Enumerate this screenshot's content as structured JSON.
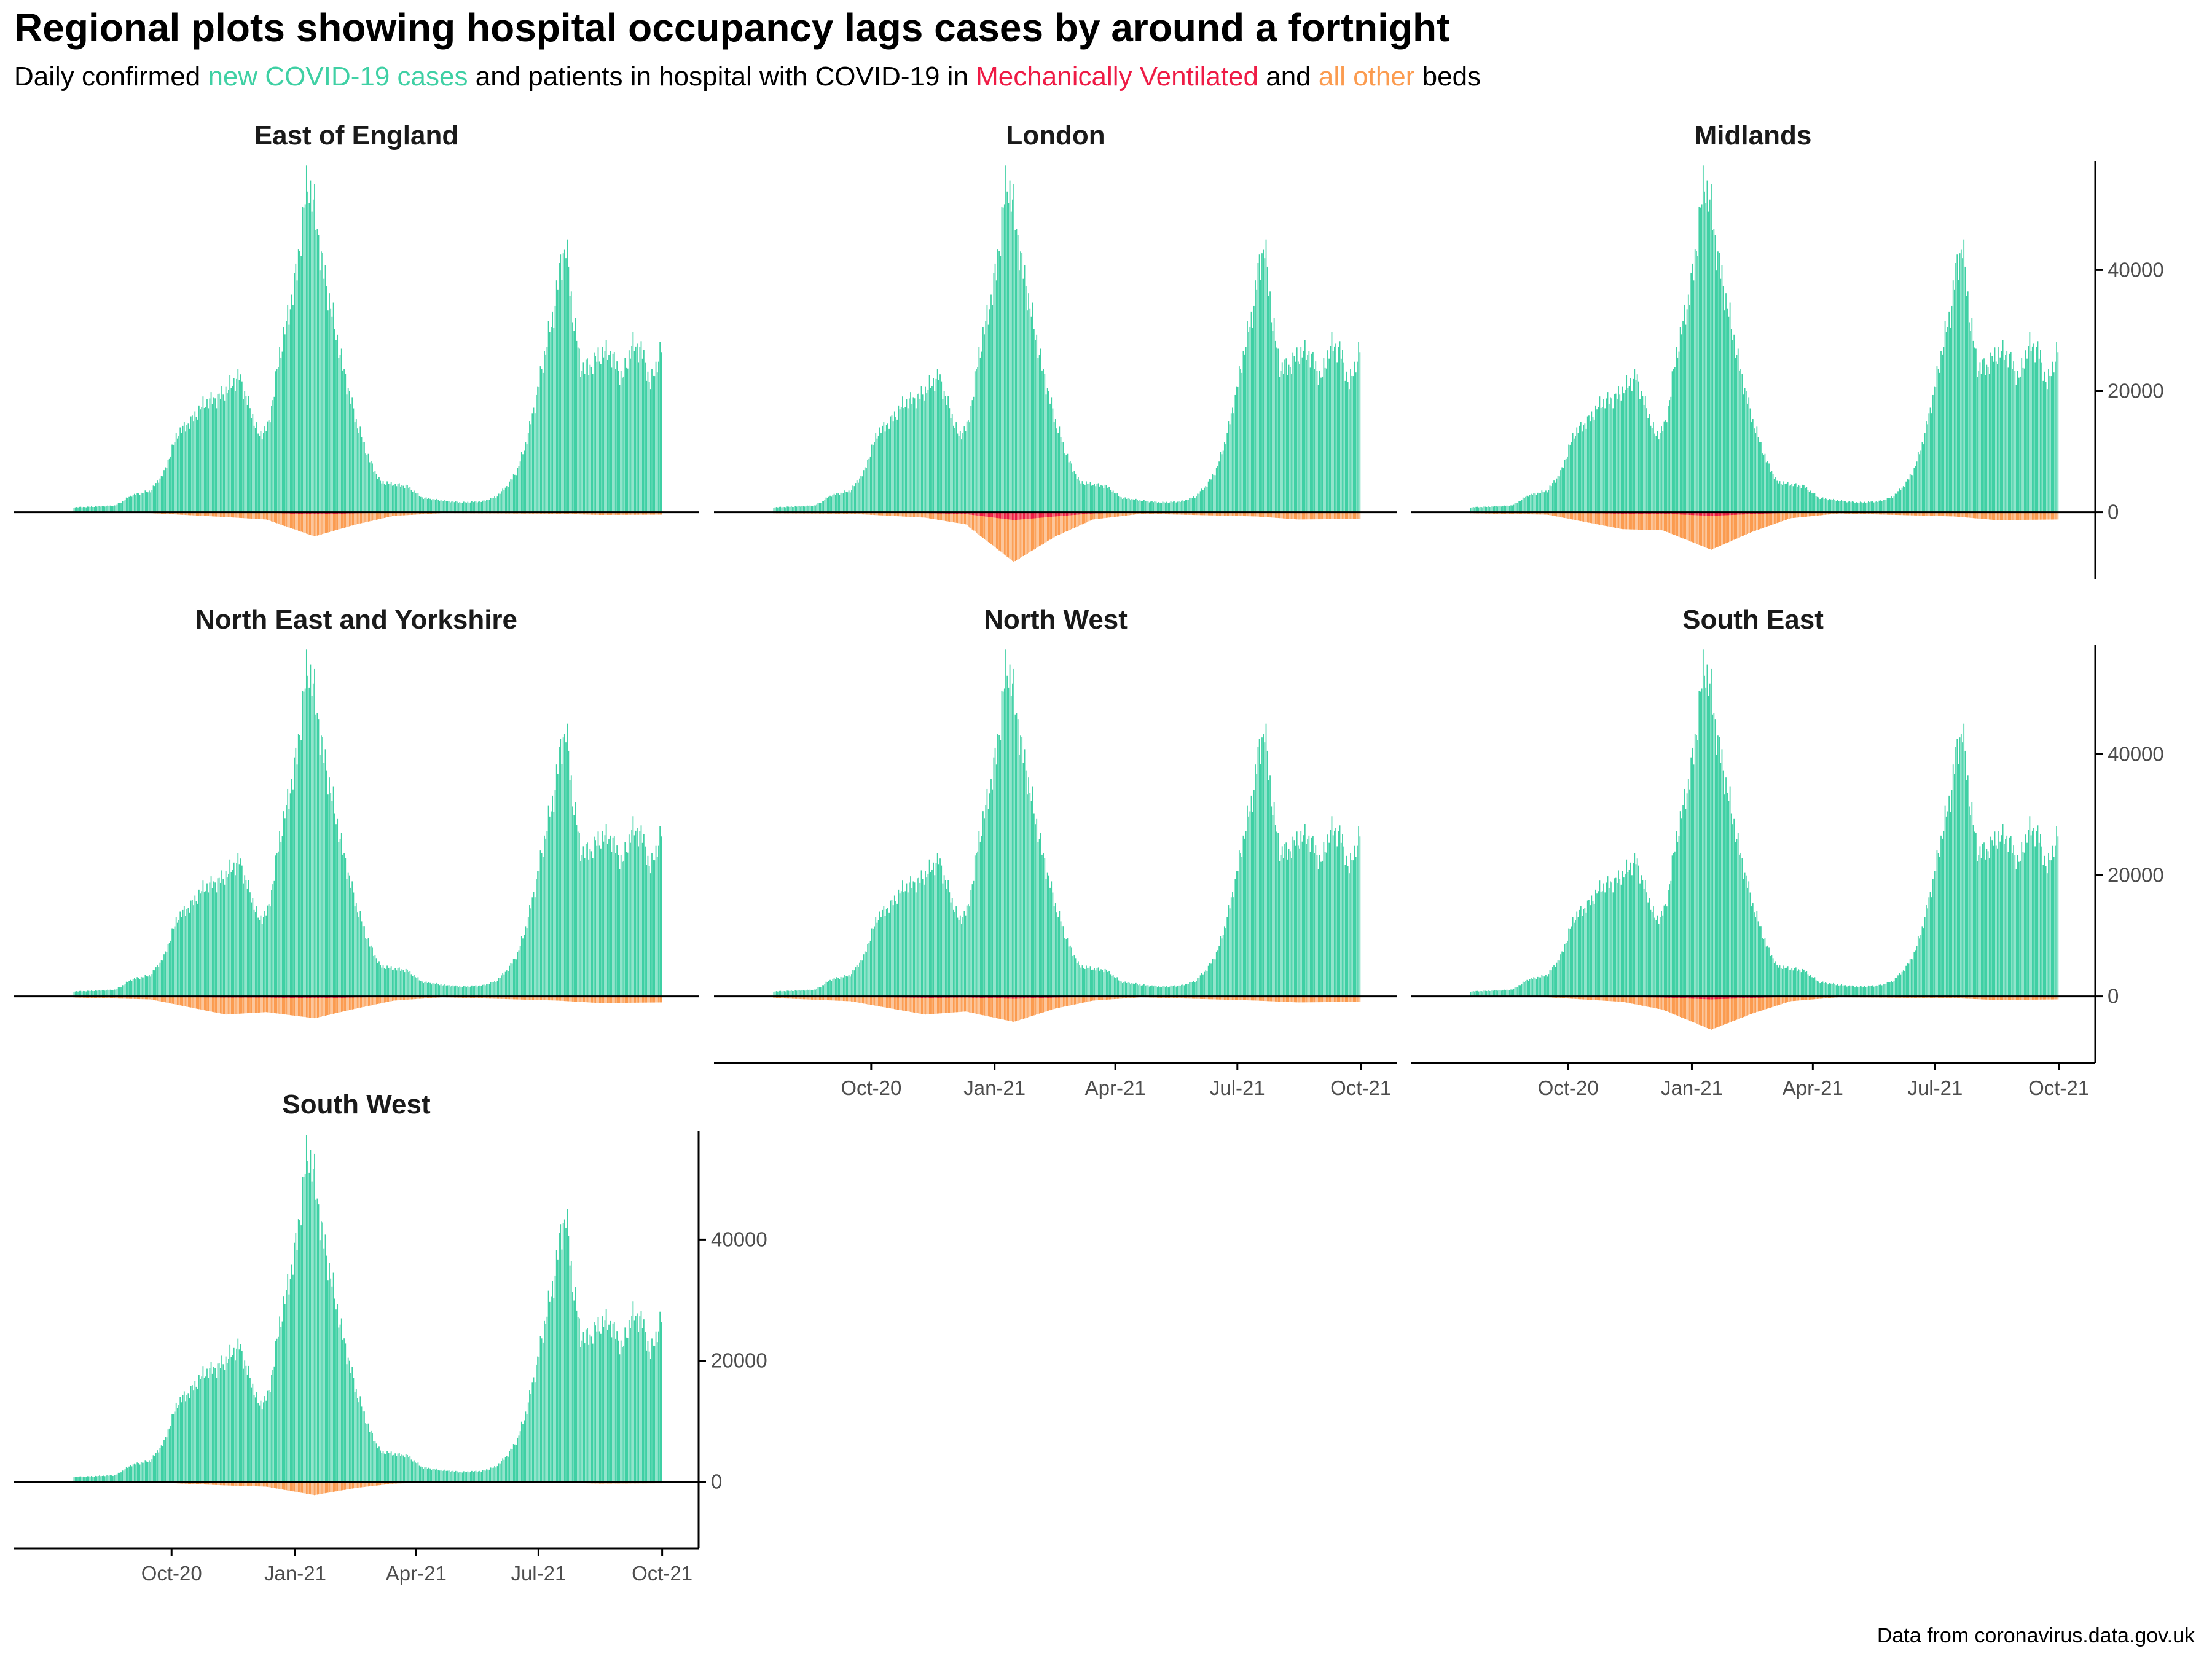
{
  "title": "Regional plots showing hospital occupancy lags cases by around a fortnight",
  "subtitle": {
    "prefix": "Daily confirmed ",
    "cases": "new COVID-19 cases",
    "middle": " and patients in hospital with COVID-19 in ",
    "mv": "Mechanically Ventilated",
    "and": " and ",
    "other": "all other",
    "suffix": " beds"
  },
  "caption": "Data from coronavirus.data.gov.uk",
  "colors": {
    "cases": "#3fd0a4",
    "mechanically_ventilated": "#ee1b45",
    "all_other_beds": "#fb9b4f",
    "axis": "#000000",
    "tick_text": "#4d4d4d"
  },
  "chart_data": {
    "type": "bar",
    "layout": "facet grid, 3 columns, free x axis labels shown on bottom panel of each column, y axis on right",
    "xlim": [
      "2020-07-01",
      "2021-10-03"
    ],
    "ylim": [
      -11000,
      58000
    ],
    "y_ticks": [
      0,
      20000,
      40000
    ],
    "y_tick_labels": [
      "0",
      "20000",
      "40000"
    ],
    "x_ticks": [
      "2020-10-01",
      "2021-01-01",
      "2021-04-01",
      "2021-07-01",
      "2021-10-01"
    ],
    "x_tick_labels": [
      "Oct-20",
      "Jan-21",
      "Apr-21",
      "Jul-21",
      "Oct-21"
    ],
    "grid": false,
    "series_colors": [
      "new COVID-19 cases",
      "Mechanically Ventilated",
      "all other"
    ],
    "cases_series": {
      "x": [
        "2020-07-01",
        "2020-08-01",
        "2020-08-20",
        "2020-09-01",
        "2020-09-15",
        "2020-09-25",
        "2020-10-05",
        "2020-10-15",
        "2020-10-25",
        "2020-11-05",
        "2020-11-12",
        "2020-11-20",
        "2020-11-28",
        "2020-12-05",
        "2020-12-12",
        "2020-12-20",
        "2020-12-27",
        "2021-01-02",
        "2021-01-06",
        "2021-01-10",
        "2021-01-15",
        "2021-01-20",
        "2021-01-27",
        "2021-02-05",
        "2021-02-15",
        "2021-02-25",
        "2021-03-05",
        "2021-03-15",
        "2021-03-25",
        "2021-04-05",
        "2021-04-20",
        "2021-05-05",
        "2021-05-20",
        "2021-05-30",
        "2021-06-08",
        "2021-06-15",
        "2021-06-22",
        "2021-06-29",
        "2021-07-06",
        "2021-07-12",
        "2021-07-17",
        "2021-07-21",
        "2021-07-26",
        "2021-08-01",
        "2021-08-08",
        "2021-08-15",
        "2021-08-22",
        "2021-08-27",
        "2021-09-01",
        "2021-09-08",
        "2021-09-15",
        "2021-09-22",
        "2021-09-30"
      ],
      "y": [
        700,
        900,
        1100,
        2800,
        3500,
        6500,
        13000,
        15000,
        18000,
        19000,
        20500,
        22500,
        17000,
        12500,
        14500,
        26000,
        33000,
        40000,
        48000,
        55000,
        50000,
        42000,
        34000,
        24000,
        15000,
        8500,
        5000,
        4600,
        4300,
        2400,
        1900,
        1600,
        1800,
        2500,
        4500,
        7000,
        12000,
        19000,
        27000,
        33000,
        41000,
        44000,
        33000,
        24000,
        24000,
        26000,
        26500,
        24500,
        22000,
        27500,
        27000,
        21000,
        27000
      ]
    },
    "panels": [
      {
        "name": "East of England",
        "hospital_series": {
          "x": [
            "2020-07-01",
            "2020-09-15",
            "2020-11-10",
            "2020-12-10",
            "2021-01-15",
            "2021-02-15",
            "2021-03-15",
            "2021-04-20",
            "2021-07-15",
            "2021-08-15",
            "2021-09-30"
          ],
          "all_other": [
            -50,
            -150,
            -800,
            -1200,
            -4000,
            -2000,
            -600,
            -150,
            -250,
            -450,
            -400
          ],
          "mechanically_ventilated": [
            -5,
            -10,
            -60,
            -100,
            -350,
            -180,
            -50,
            -10,
            -20,
            -40,
            -35
          ]
        }
      },
      {
        "name": "London",
        "hospital_series": {
          "x": [
            "2020-07-01",
            "2020-09-15",
            "2020-11-10",
            "2020-12-10",
            "2021-01-15",
            "2021-02-15",
            "2021-03-15",
            "2021-04-20",
            "2021-07-15",
            "2021-08-15",
            "2021-09-30"
          ],
          "all_other": [
            -150,
            -250,
            -900,
            -2000,
            -8200,
            -4000,
            -1200,
            -250,
            -700,
            -1200,
            -1100
          ],
          "mechanically_ventilated": [
            -20,
            -40,
            -150,
            -300,
            -1300,
            -700,
            -200,
            -40,
            -100,
            -150,
            -130
          ]
        }
      },
      {
        "name": "Midlands",
        "hospital_series": {
          "x": [
            "2020-07-01",
            "2020-09-15",
            "2020-11-10",
            "2020-12-10",
            "2021-01-15",
            "2021-02-15",
            "2021-03-15",
            "2021-04-20",
            "2021-07-15",
            "2021-08-15",
            "2021-09-30"
          ],
          "all_other": [
            -100,
            -400,
            -2800,
            -3000,
            -6200,
            -3200,
            -1000,
            -200,
            -700,
            -1300,
            -1200
          ],
          "mechanically_ventilated": [
            -10,
            -40,
            -250,
            -250,
            -600,
            -300,
            -80,
            -20,
            -60,
            -120,
            -100
          ]
        }
      },
      {
        "name": "North East and Yorkshire",
        "hospital_series": {
          "x": [
            "2020-07-01",
            "2020-09-15",
            "2020-11-10",
            "2020-12-10",
            "2021-01-15",
            "2021-02-15",
            "2021-03-15",
            "2021-04-20",
            "2021-07-15",
            "2021-08-15",
            "2021-09-30"
          ],
          "all_other": [
            -80,
            -500,
            -3000,
            -2600,
            -3600,
            -2000,
            -700,
            -150,
            -700,
            -1100,
            -1000
          ],
          "mechanically_ventilated": [
            -8,
            -40,
            -200,
            -200,
            -350,
            -180,
            -60,
            -10,
            -60,
            -100,
            -90
          ]
        }
      },
      {
        "name": "North West",
        "hospital_series": {
          "x": [
            "2020-07-01",
            "2020-09-15",
            "2020-11-10",
            "2020-12-10",
            "2021-01-15",
            "2021-02-15",
            "2021-03-15",
            "2021-04-20",
            "2021-07-15",
            "2021-08-15",
            "2021-09-30"
          ],
          "all_other": [
            -100,
            -800,
            -3000,
            -2500,
            -4200,
            -2000,
            -700,
            -150,
            -700,
            -1000,
            -900
          ],
          "mechanically_ventilated": [
            -10,
            -60,
            -250,
            -200,
            -400,
            -200,
            -60,
            -15,
            -60,
            -90,
            -80
          ]
        }
      },
      {
        "name": "South East",
        "hospital_series": {
          "x": [
            "2020-07-01",
            "2020-09-15",
            "2020-11-10",
            "2020-12-10",
            "2021-01-15",
            "2021-02-15",
            "2021-03-15",
            "2021-04-20",
            "2021-07-15",
            "2021-08-15",
            "2021-09-30"
          ],
          "all_other": [
            -60,
            -150,
            -900,
            -2200,
            -5500,
            -2800,
            -800,
            -150,
            -300,
            -600,
            -500
          ],
          "mechanically_ventilated": [
            -5,
            -15,
            -80,
            -200,
            -500,
            -260,
            -70,
            -10,
            -25,
            -50,
            -45
          ]
        }
      },
      {
        "name": "South West",
        "hospital_series": {
          "x": [
            "2020-07-01",
            "2020-09-15",
            "2020-11-10",
            "2020-12-10",
            "2021-01-15",
            "2021-02-15",
            "2021-03-15",
            "2021-04-20",
            "2021-07-15",
            "2021-08-15",
            "2021-09-30"
          ],
          "all_other": [
            -30,
            -80,
            -600,
            -800,
            -2200,
            -1000,
            -300,
            -60,
            -150,
            -300,
            -250
          ],
          "mechanically_ventilated": [
            -3,
            -8,
            -50,
            -70,
            -200,
            -90,
            -25,
            -5,
            -12,
            -25,
            -20
          ]
        }
      }
    ]
  }
}
